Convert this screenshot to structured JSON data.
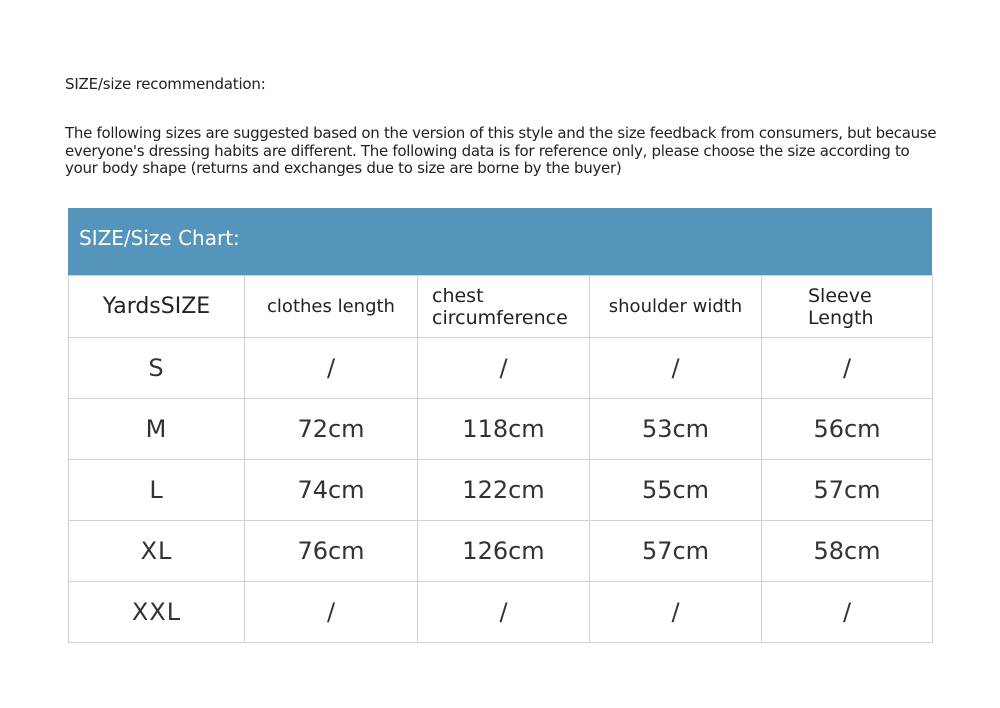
{
  "title": "SIZE/size recommendation:",
  "description": "The following sizes are suggested based on the version of this style and the size feedback from consumers, but because everyone's dressing habits are different. The following data is for reference only, please choose the size according to your body shape (returns and exchanges due to size are borne by the buyer)",
  "chart_title": "SIZE/Size Chart:",
  "colors": {
    "header_band": "#5594bb",
    "grid": "#d2d2d2"
  },
  "table": {
    "headers": [
      "YardsSIZE",
      "clothes length",
      "chest circumference",
      "shoulder width",
      "Sleeve Length"
    ],
    "rows": [
      [
        "S",
        "/",
        "/",
        "/",
        "/"
      ],
      [
        "M",
        "72cm",
        "118cm",
        "53cm",
        "56cm"
      ],
      [
        "L",
        "74cm",
        "122cm",
        "55cm",
        "57cm"
      ],
      [
        "XL",
        "76cm",
        "126cm",
        "57cm",
        "58cm"
      ],
      [
        "XXL",
        "/",
        "/",
        "/",
        "/"
      ]
    ]
  }
}
